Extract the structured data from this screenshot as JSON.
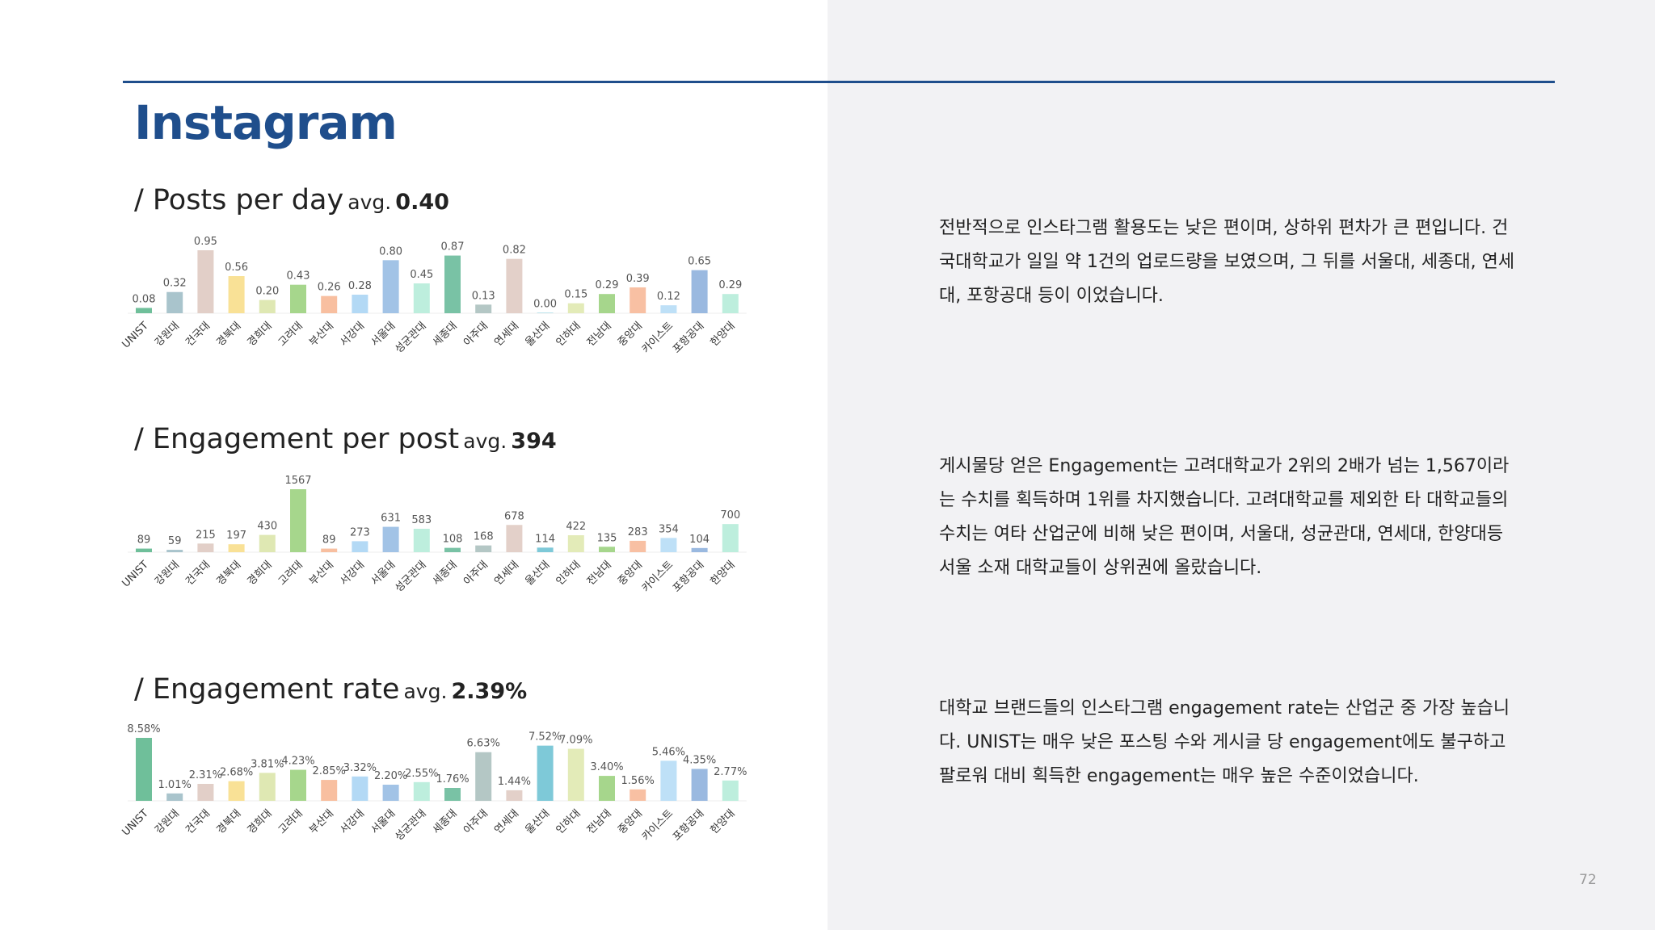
{
  "title": "Instagram",
  "page_number": "72",
  "colors": {
    "accent": "#1f4e8c",
    "bars": [
      "#6fbf9a",
      "#a9c4cc",
      "#e2cfc8",
      "#f9e196",
      "#dfe8b3",
      "#a6d68c",
      "#f8bfa0",
      "#b3d9f5",
      "#a2c3e6",
      "#bdeedd",
      "#79c2a5",
      "#b4c7c5",
      "#e3d0c9",
      "#7ec9d8",
      "#e3ebb8",
      "#a6d68c",
      "#f8c0a3",
      "#bee0f7",
      "#9ab9e0",
      "#bdeedd"
    ]
  },
  "sections": [
    {
      "heading": "/ Posts per day",
      "avg_label": "avg.",
      "avg_value": "0.40",
      "description": "전반적으로 인스타그램 활용도는 낮은 편이며, 상하위 편차가 큰 편입니다. 건국대학교가 일일 약 1건의 업로드량을 보였으며, 그 뒤를 서울대, 세종대, 연세대, 포항공대 등이 이었습니다."
    },
    {
      "heading": "/ Engagement per post",
      "avg_label": "avg.",
      "avg_value": "394",
      "description": "게시물당 얻은 Engagement는 고려대학교가 2위의 2배가 넘는 1,567이라는 수치를 획득하며 1위를 차지했습니다. 고려대학교를 제외한 타 대학교들의 수치는 여타 산업군에 비해 낮은 편이며, 서울대, 성균관대, 연세대, 한양대등 서울 소재 대학교들이 상위권에 올랐습니다."
    },
    {
      "heading": "/ Engagement rate",
      "avg_label": "avg.",
      "avg_value": "2.39%",
      "description": "대학교 브랜드들의 인스타그램 engagement rate는 산업군 중 가장 높습니다. UNIST는 매우 낮은 포스팅 수와 게시글 당 engagement에도 불구하고 팔로워 대비 획득한 engagement는 매우 높은 수준이었습니다."
    }
  ],
  "chart_data": [
    {
      "type": "bar",
      "categories": [
        "UNIST",
        "강원대",
        "건국대",
        "경북대",
        "경희대",
        "고려대",
        "부산대",
        "서강대",
        "서울대",
        "성균관대",
        "세종대",
        "아주대",
        "연세대",
        "울산대",
        "인하대",
        "전남대",
        "중앙대",
        "카이스트",
        "포항공대",
        "한양대"
      ],
      "values": [
        0.08,
        0.32,
        0.95,
        0.56,
        0.2,
        0.43,
        0.26,
        0.28,
        0.8,
        0.45,
        0.87,
        0.13,
        0.82,
        0.0,
        0.15,
        0.29,
        0.39,
        0.12,
        0.65,
        0.29
      ],
      "value_labels": [
        "0.08",
        "0.32",
        "0.95",
        "0.56",
        "0.20",
        "0.43",
        "0.26",
        "0.28",
        "0.80",
        "0.45",
        "0.87",
        "0.13",
        "0.82",
        "0.00",
        "0.15",
        "0.29",
        "0.39",
        "0.12",
        "0.65",
        "0.29"
      ],
      "ylim": [
        0,
        0.95
      ],
      "grid": false
    },
    {
      "type": "bar",
      "categories": [
        "UNIST",
        "강원대",
        "건국대",
        "경북대",
        "경희대",
        "고려대",
        "부산대",
        "서강대",
        "서울대",
        "성균관대",
        "세종대",
        "아주대",
        "연세대",
        "울산대",
        "인하대",
        "전남대",
        "중앙대",
        "카이스트",
        "포항공대",
        "한양대"
      ],
      "values": [
        89,
        59,
        215,
        197,
        430,
        1567,
        89,
        273,
        631,
        583,
        108,
        168,
        678,
        114,
        422,
        135,
        283,
        354,
        104,
        700
      ],
      "value_labels": [
        "89",
        "59",
        "215",
        "197",
        "430",
        "1567",
        "89",
        "273",
        "631",
        "583",
        "108",
        "168",
        "678",
        "114",
        "422",
        "135",
        "283",
        "354",
        "104",
        "700"
      ],
      "ylim": [
        0,
        1567
      ],
      "grid": false
    },
    {
      "type": "bar",
      "categories": [
        "UNIST",
        "강원대",
        "건국대",
        "경북대",
        "경희대",
        "고려대",
        "부산대",
        "서강대",
        "서울대",
        "성균관대",
        "세종대",
        "아주대",
        "연세대",
        "울산대",
        "인하대",
        "전남대",
        "중앙대",
        "카이스트",
        "포항공대",
        "한양대"
      ],
      "values": [
        8.58,
        1.01,
        2.31,
        2.68,
        3.81,
        4.23,
        2.85,
        3.32,
        2.2,
        2.55,
        1.76,
        6.63,
        1.44,
        7.52,
        7.09,
        3.4,
        1.56,
        5.46,
        4.35,
        2.77
      ],
      "value_labels": [
        "8.58%",
        "1.01%",
        "2.31%",
        "2.68%",
        "3.81%",
        "4.23%",
        "2.85%",
        "3.32%",
        "2.20%",
        "2.55%",
        "1.76%",
        "6.63%",
        "1.44%",
        "7.52%",
        "7.09%",
        "3.40%",
        "1.56%",
        "5.46%",
        "4.35%",
        "2.77%"
      ],
      "ylim": [
        0,
        8.58
      ],
      "grid": false
    }
  ]
}
